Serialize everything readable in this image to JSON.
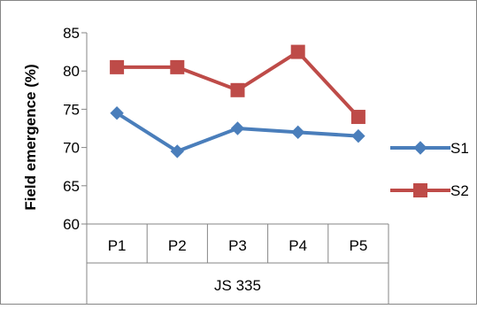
{
  "chart_data": {
    "type": "line",
    "ylabel": "Field emergence (%)",
    "xlabel": "",
    "ylim": [
      60,
      85
    ],
    "yticks": [
      60,
      65,
      70,
      75,
      80,
      85
    ],
    "categories": [
      "P1",
      "P2",
      "P3",
      "P4",
      "P5"
    ],
    "group_label": "JS 335",
    "grid": false,
    "legend_position": "right",
    "series": [
      {
        "name": "S1",
        "color": "#4a7ebb",
        "marker": "diamond",
        "values": [
          74.5,
          69.5,
          72.5,
          72.0,
          71.5
        ]
      },
      {
        "name": "S2",
        "color": "#be4b48",
        "marker": "square",
        "values": [
          80.5,
          80.5,
          77.5,
          82.5,
          74.0
        ]
      }
    ]
  }
}
